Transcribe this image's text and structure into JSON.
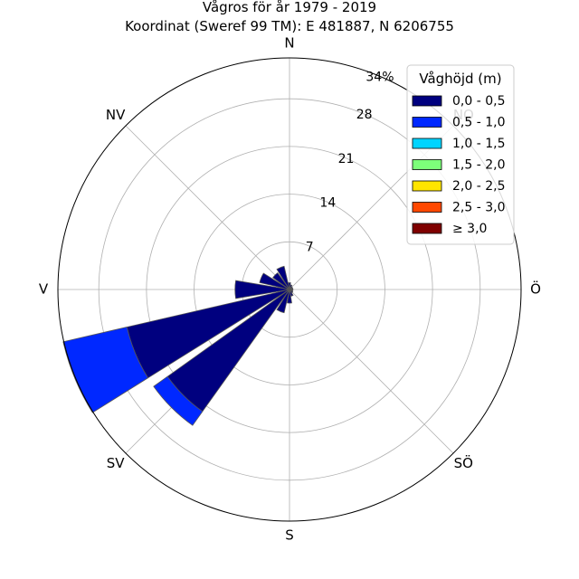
{
  "chart_data": {
    "type": "windrose",
    "title": "Vågros för år 1979 - 2019",
    "subtitle": "Koordinat (Sweref 99 TM): E 481887, N 6206755",
    "direction_labels": [
      "N",
      "NO",
      "Ö",
      "SÖ",
      "S",
      "SV",
      "V",
      "NV"
    ],
    "direction_angles_deg": [
      0,
      45,
      90,
      135,
      180,
      225,
      270,
      315
    ],
    "ring_values": [
      7,
      14,
      21,
      28,
      34
    ],
    "ring_labels": [
      "7",
      "14",
      "21",
      "28",
      "34%"
    ],
    "r_max": 34,
    "legend": {
      "title": "Våghöjd (m)",
      "entries": [
        {
          "label": "0,0 - 0,5",
          "color": "#00007f"
        },
        {
          "label": "0,5 - 1,0",
          "color": "#0028ff"
        },
        {
          "label": "1,0 - 1,5",
          "color": "#00d4ff"
        },
        {
          "label": "1,5 - 2,0",
          "color": "#7dff7a"
        },
        {
          "label": "2,0 - 2,5",
          "color": "#ffe500"
        },
        {
          "label": "2,5 - 3,0",
          "color": "#ff4800"
        },
        {
          "label": "≥ 3,0",
          "color": "#7f0000"
        }
      ]
    },
    "sectors": [
      {
        "direction_deg": 247.5,
        "values": [
          24.5,
          9.6,
          0,
          0,
          0,
          0,
          0
        ]
      },
      {
        "direction_deg": 225.0,
        "values": [
          22.0,
          2.5,
          0,
          0,
          0,
          0,
          0
        ]
      },
      {
        "direction_deg": 202.5,
        "values": [
          3.5,
          0,
          0,
          0,
          0,
          0,
          0
        ]
      },
      {
        "direction_deg": 270.0,
        "values": [
          8.0,
          0,
          0,
          0,
          0,
          0,
          0
        ]
      },
      {
        "direction_deg": 292.5,
        "values": [
          4.5,
          0,
          0,
          0,
          0,
          0,
          0
        ]
      },
      {
        "direction_deg": 315.0,
        "values": [
          3.0,
          0,
          0,
          0,
          0,
          0,
          0
        ]
      },
      {
        "direction_deg": 337.5,
        "values": [
          3.5,
          0,
          0,
          0,
          0,
          0,
          0
        ]
      },
      {
        "direction_deg": 0.0,
        "values": [
          1.0,
          0,
          0,
          0,
          0,
          0,
          0
        ]
      },
      {
        "direction_deg": 22.5,
        "values": [
          0.7,
          0,
          0,
          0,
          0,
          0,
          0
        ]
      },
      {
        "direction_deg": 45.0,
        "values": [
          0.5,
          0,
          0,
          0,
          0,
          0,
          0
        ]
      },
      {
        "direction_deg": 67.5,
        "values": [
          0.5,
          0,
          0,
          0,
          0,
          0,
          0
        ]
      },
      {
        "direction_deg": 90.0,
        "values": [
          0.5,
          0,
          0,
          0,
          0,
          0,
          0
        ]
      },
      {
        "direction_deg": 112.5,
        "values": [
          0.5,
          0,
          0,
          0,
          0,
          0,
          0
        ]
      },
      {
        "direction_deg": 135.0,
        "values": [
          0.6,
          0,
          0,
          0,
          0,
          0,
          0
        ]
      },
      {
        "direction_deg": 157.5,
        "values": [
          1.0,
          0,
          0,
          0,
          0,
          0,
          0
        ]
      },
      {
        "direction_deg": 180.0,
        "values": [
          2.0,
          0,
          0,
          0,
          0,
          0,
          0
        ]
      }
    ],
    "grid": true
  }
}
